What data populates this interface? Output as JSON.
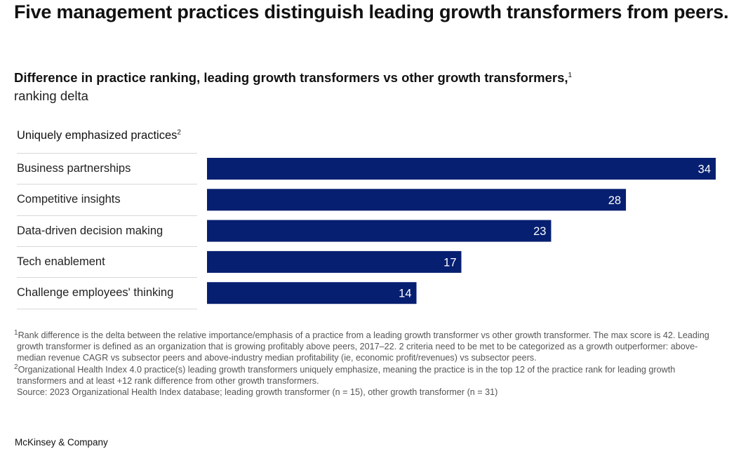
{
  "page": {
    "title": "Five management practices distinguish leading growth transformers from peers.",
    "subtitle": "Difference in practice ranking, leading growth transformers vs other growth transformers,",
    "subtitle_footnote_ref": "1",
    "unit": "ranking delta",
    "row_header": "Uniquely emphasized practices",
    "row_header_footnote_ref": "2",
    "footnotes": [
      {
        "ref": "1",
        "text": "Rank difference is the delta between the relative importance/emphasis of a practice from a leading growth transformer vs other growth transformer. The max score is 42. Leading growth transformer is defined as an organization that is growing profitably above peers, 2017–22. 2 criteria need to be met to be categorized as a growth outperformer: above-median revenue CAGR vs subsector peers and above-industry median profitability (ie, economic profit/revenues) vs subsector peers."
      },
      {
        "ref": "2",
        "text": "Organizational Health Index 4.0 practice(s) leading growth transformers uniquely emphasize, meaning the practice is in the top 12 of the practice rank for leading growth transformers and at least +12 rank difference from other growth transformers."
      }
    ],
    "source": "Source: 2023 Organizational Health Index database; leading growth transformer (n = 15), other growth transformer (n = 31)",
    "brand": "McKinsey & Company"
  },
  "colors": {
    "bar": "#061f70",
    "bar_label": "#ffffff",
    "divider": "#d8d8d8"
  },
  "chart_data": {
    "type": "bar",
    "orientation": "horizontal",
    "title": "Difference in practice ranking, leading growth transformers vs other growth transformers",
    "xlabel": "ranking delta",
    "ylabel": "Uniquely emphasized practices",
    "categories": [
      "Business partnerships",
      "Competitive insights",
      "Data-driven decision making",
      "Tech enablement",
      "Challenge employees' thinking"
    ],
    "values": [
      34,
      28,
      23,
      17,
      14
    ],
    "xlim": [
      0,
      34
    ],
    "grid": false,
    "legend": "none",
    "data_labels": "inside-end"
  }
}
